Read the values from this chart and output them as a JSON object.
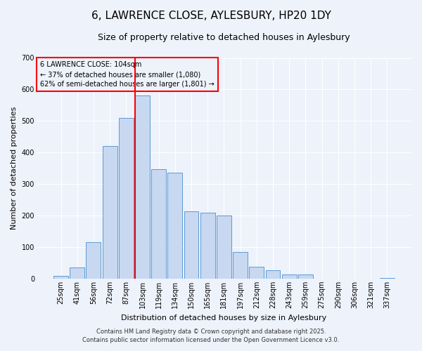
{
  "title": "6, LAWRENCE CLOSE, AYLESBURY, HP20 1DY",
  "subtitle": "Size of property relative to detached houses in Aylesbury",
  "xlabel": "Distribution of detached houses by size in Aylesbury",
  "ylabel": "Number of detached properties",
  "categories": [
    "25sqm",
    "41sqm",
    "56sqm",
    "72sqm",
    "87sqm",
    "103sqm",
    "119sqm",
    "134sqm",
    "150sqm",
    "165sqm",
    "181sqm",
    "197sqm",
    "212sqm",
    "228sqm",
    "243sqm",
    "259sqm",
    "275sqm",
    "290sqm",
    "306sqm",
    "321sqm",
    "337sqm"
  ],
  "values": [
    8,
    35,
    115,
    420,
    510,
    580,
    348,
    335,
    213,
    210,
    200,
    85,
    38,
    27,
    12,
    13,
    0,
    0,
    0,
    0,
    3
  ],
  "bar_color": "#c8d8f0",
  "bar_edge_color": "#5b9bd5",
  "vline_index": 5,
  "vline_color": "red",
  "annotation_title": "6 LAWRENCE CLOSE: 104sqm",
  "annotation_line1": "← 37% of detached houses are smaller (1,080)",
  "annotation_line2": "62% of semi-detached houses are larger (1,801) →",
  "annotation_box_color": "red",
  "ylim": [
    0,
    700
  ],
  "yticks": [
    0,
    100,
    200,
    300,
    400,
    500,
    600,
    700
  ],
  "footer1": "Contains HM Land Registry data © Crown copyright and database right 2025.",
  "footer2": "Contains public sector information licensed under the Open Government Licence v3.0.",
  "bg_color": "#eef2fb",
  "grid_color": "#ffffff",
  "title_fontsize": 11,
  "subtitle_fontsize": 9,
  "axis_label_fontsize": 8,
  "tick_fontsize": 7,
  "annotation_fontsize": 7,
  "footer_fontsize": 6
}
